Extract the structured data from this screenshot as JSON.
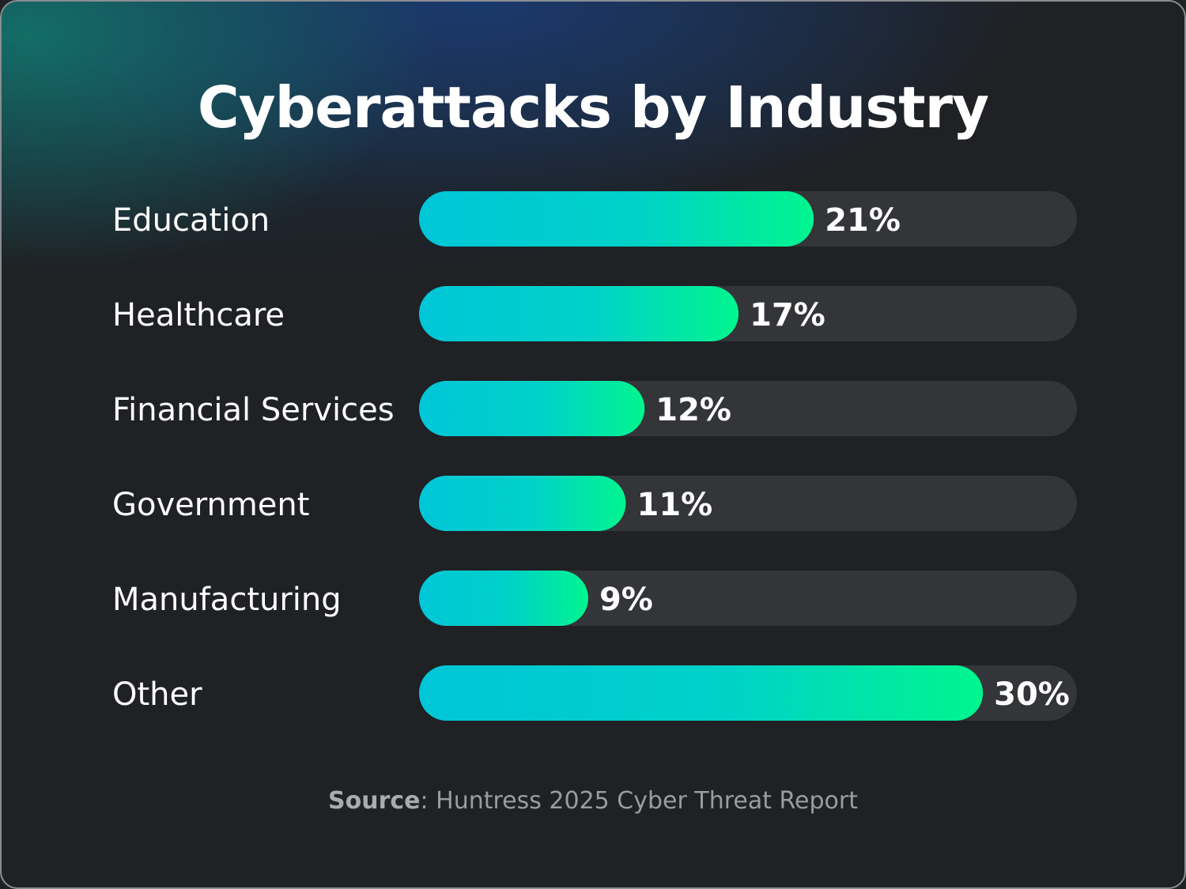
{
  "colors": {
    "background": "#1f2124",
    "track": "#333538",
    "bar_gradient_start": "#00c6d8",
    "bar_gradient_end": "#00f58e",
    "text": "#ffffff",
    "source_text": "#9a9c9f"
  },
  "chart_data": {
    "type": "bar",
    "orientation": "horizontal",
    "title": "Cyberattacks by Industry",
    "categories": [
      "Education",
      "Healthcare",
      "Financial Services",
      "Government",
      "Manufacturing",
      "Other"
    ],
    "values": [
      21,
      17,
      12,
      11,
      9,
      30
    ],
    "value_labels": [
      "21%",
      "17%",
      "12%",
      "11%",
      "9%",
      "30%"
    ],
    "unit": "%",
    "xlim": [
      0,
      35
    ],
    "grid": false,
    "legend": "none",
    "source_label": "Source",
    "source_text": ": Huntress 2025 Cyber Threat Report"
  }
}
